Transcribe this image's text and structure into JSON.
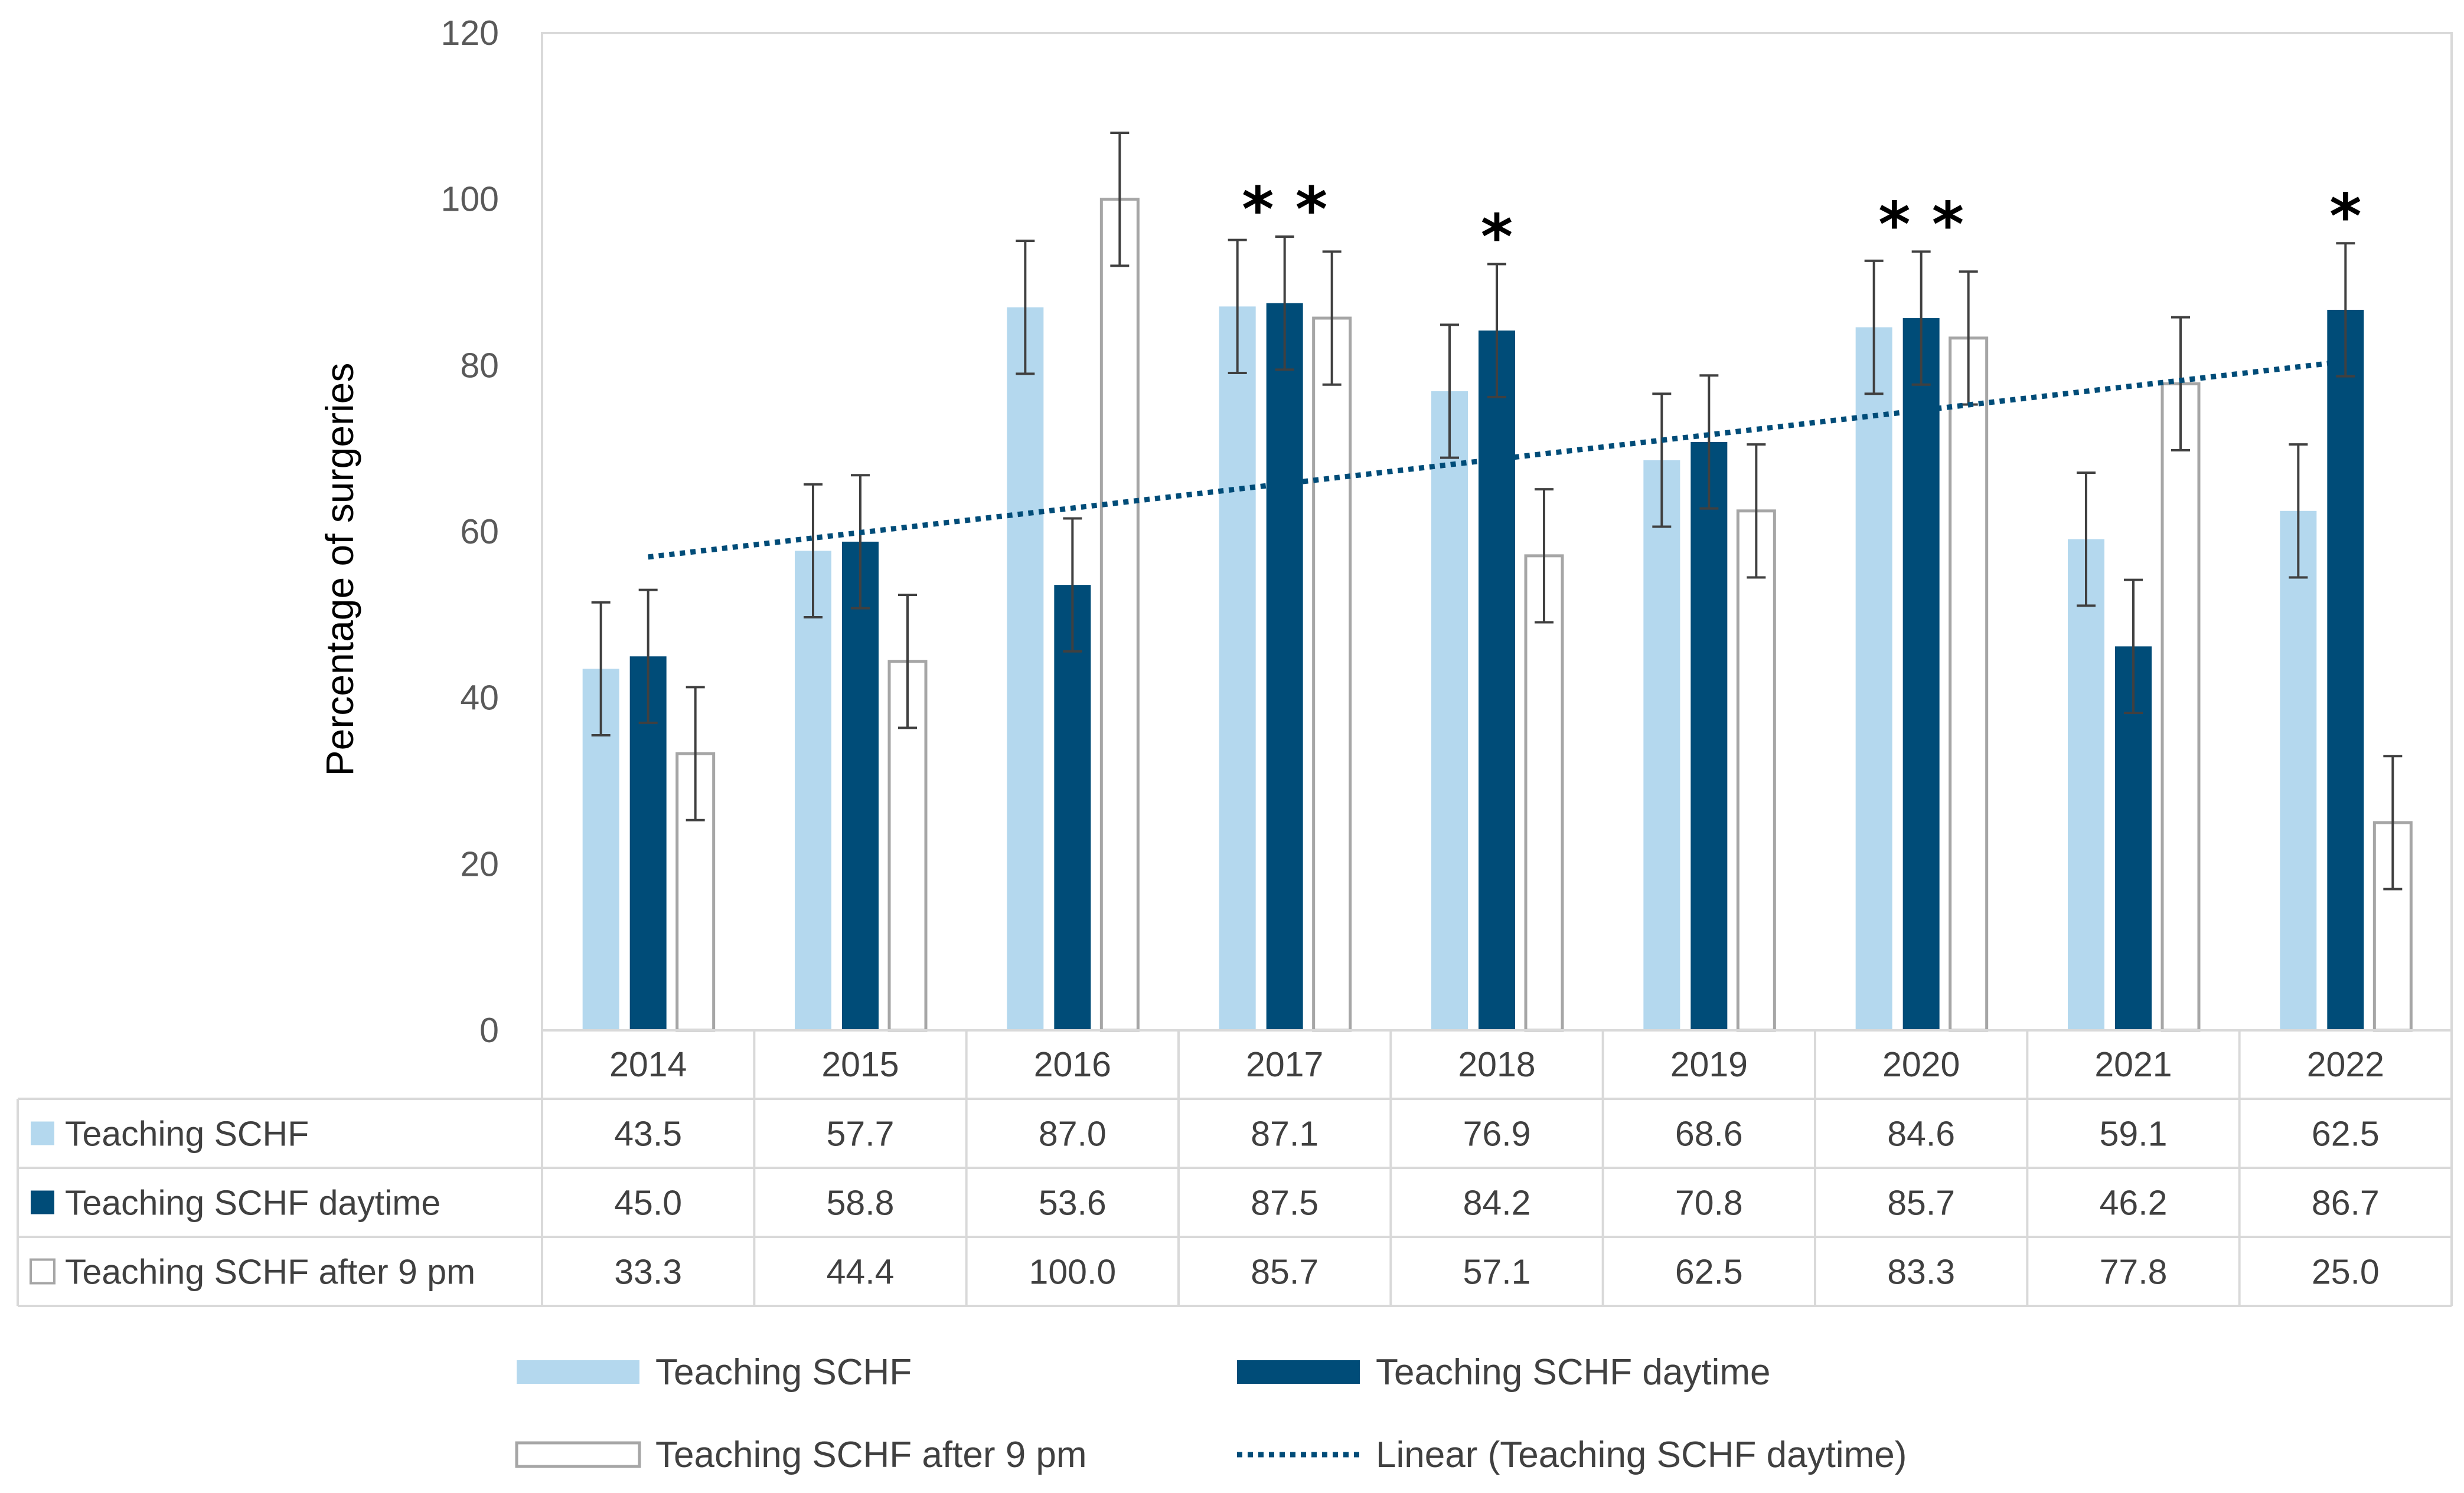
{
  "chart_data": {
    "type": "bar",
    "ylabel": "Percentage of surgeries",
    "ylim": [
      0,
      120
    ],
    "yticks": [
      0,
      20,
      40,
      60,
      80,
      100,
      120
    ],
    "categories": [
      "2014",
      "2015",
      "2016",
      "2017",
      "2018",
      "2019",
      "2020",
      "2021",
      "2022"
    ],
    "series": [
      {
        "name": "Teaching SCHF",
        "color": "#b4d8ee",
        "style": "filled",
        "values": [
          43.5,
          57.7,
          87.0,
          87.1,
          76.9,
          68.6,
          84.6,
          59.1,
          62.5
        ],
        "labels": [
          "43.5",
          "57.7",
          "87.0",
          "87.1",
          "76.9",
          "68.6",
          "84.6",
          "59.1",
          "62.5"
        ]
      },
      {
        "name": "Teaching SCHF daytime",
        "color": "#004c78",
        "style": "filled",
        "values": [
          45.0,
          58.8,
          53.6,
          87.5,
          84.2,
          70.8,
          85.7,
          46.2,
          86.7
        ],
        "labels": [
          "45.0",
          "58.8",
          "53.6",
          "87.5",
          "84.2",
          "70.8",
          "85.7",
          "46.2",
          "86.7"
        ]
      },
      {
        "name": "Teaching SCHF after 9 pm",
        "color": "#a6a6a6",
        "style": "outline",
        "values": [
          33.3,
          44.4,
          100.0,
          85.7,
          57.1,
          62.5,
          83.3,
          77.8,
          25.0
        ],
        "labels": [
          "33.3",
          "44.4",
          "100.0",
          "85.7",
          "57.1",
          "62.5",
          "83.3",
          "77.8",
          "25.0"
        ]
      }
    ],
    "error_bar": 8,
    "trendline": {
      "name": "Linear (Teaching SCHF daytime)",
      "series": "Teaching SCHF daytime",
      "color": "#004c78",
      "style": "dotted"
    },
    "annotations": [
      {
        "category": "2017",
        "text": "* *"
      },
      {
        "category": "2018",
        "text": "*"
      },
      {
        "category": "2020",
        "text": "* *"
      },
      {
        "category": "2022",
        "text": "*"
      }
    ],
    "legend": {
      "position": "bottom",
      "entries": [
        "Teaching SCHF",
        "Teaching SCHF daytime",
        "Teaching SCHF after 9 pm",
        "Linear (Teaching SCHF daytime)"
      ]
    },
    "data_table": true,
    "grid": false
  }
}
